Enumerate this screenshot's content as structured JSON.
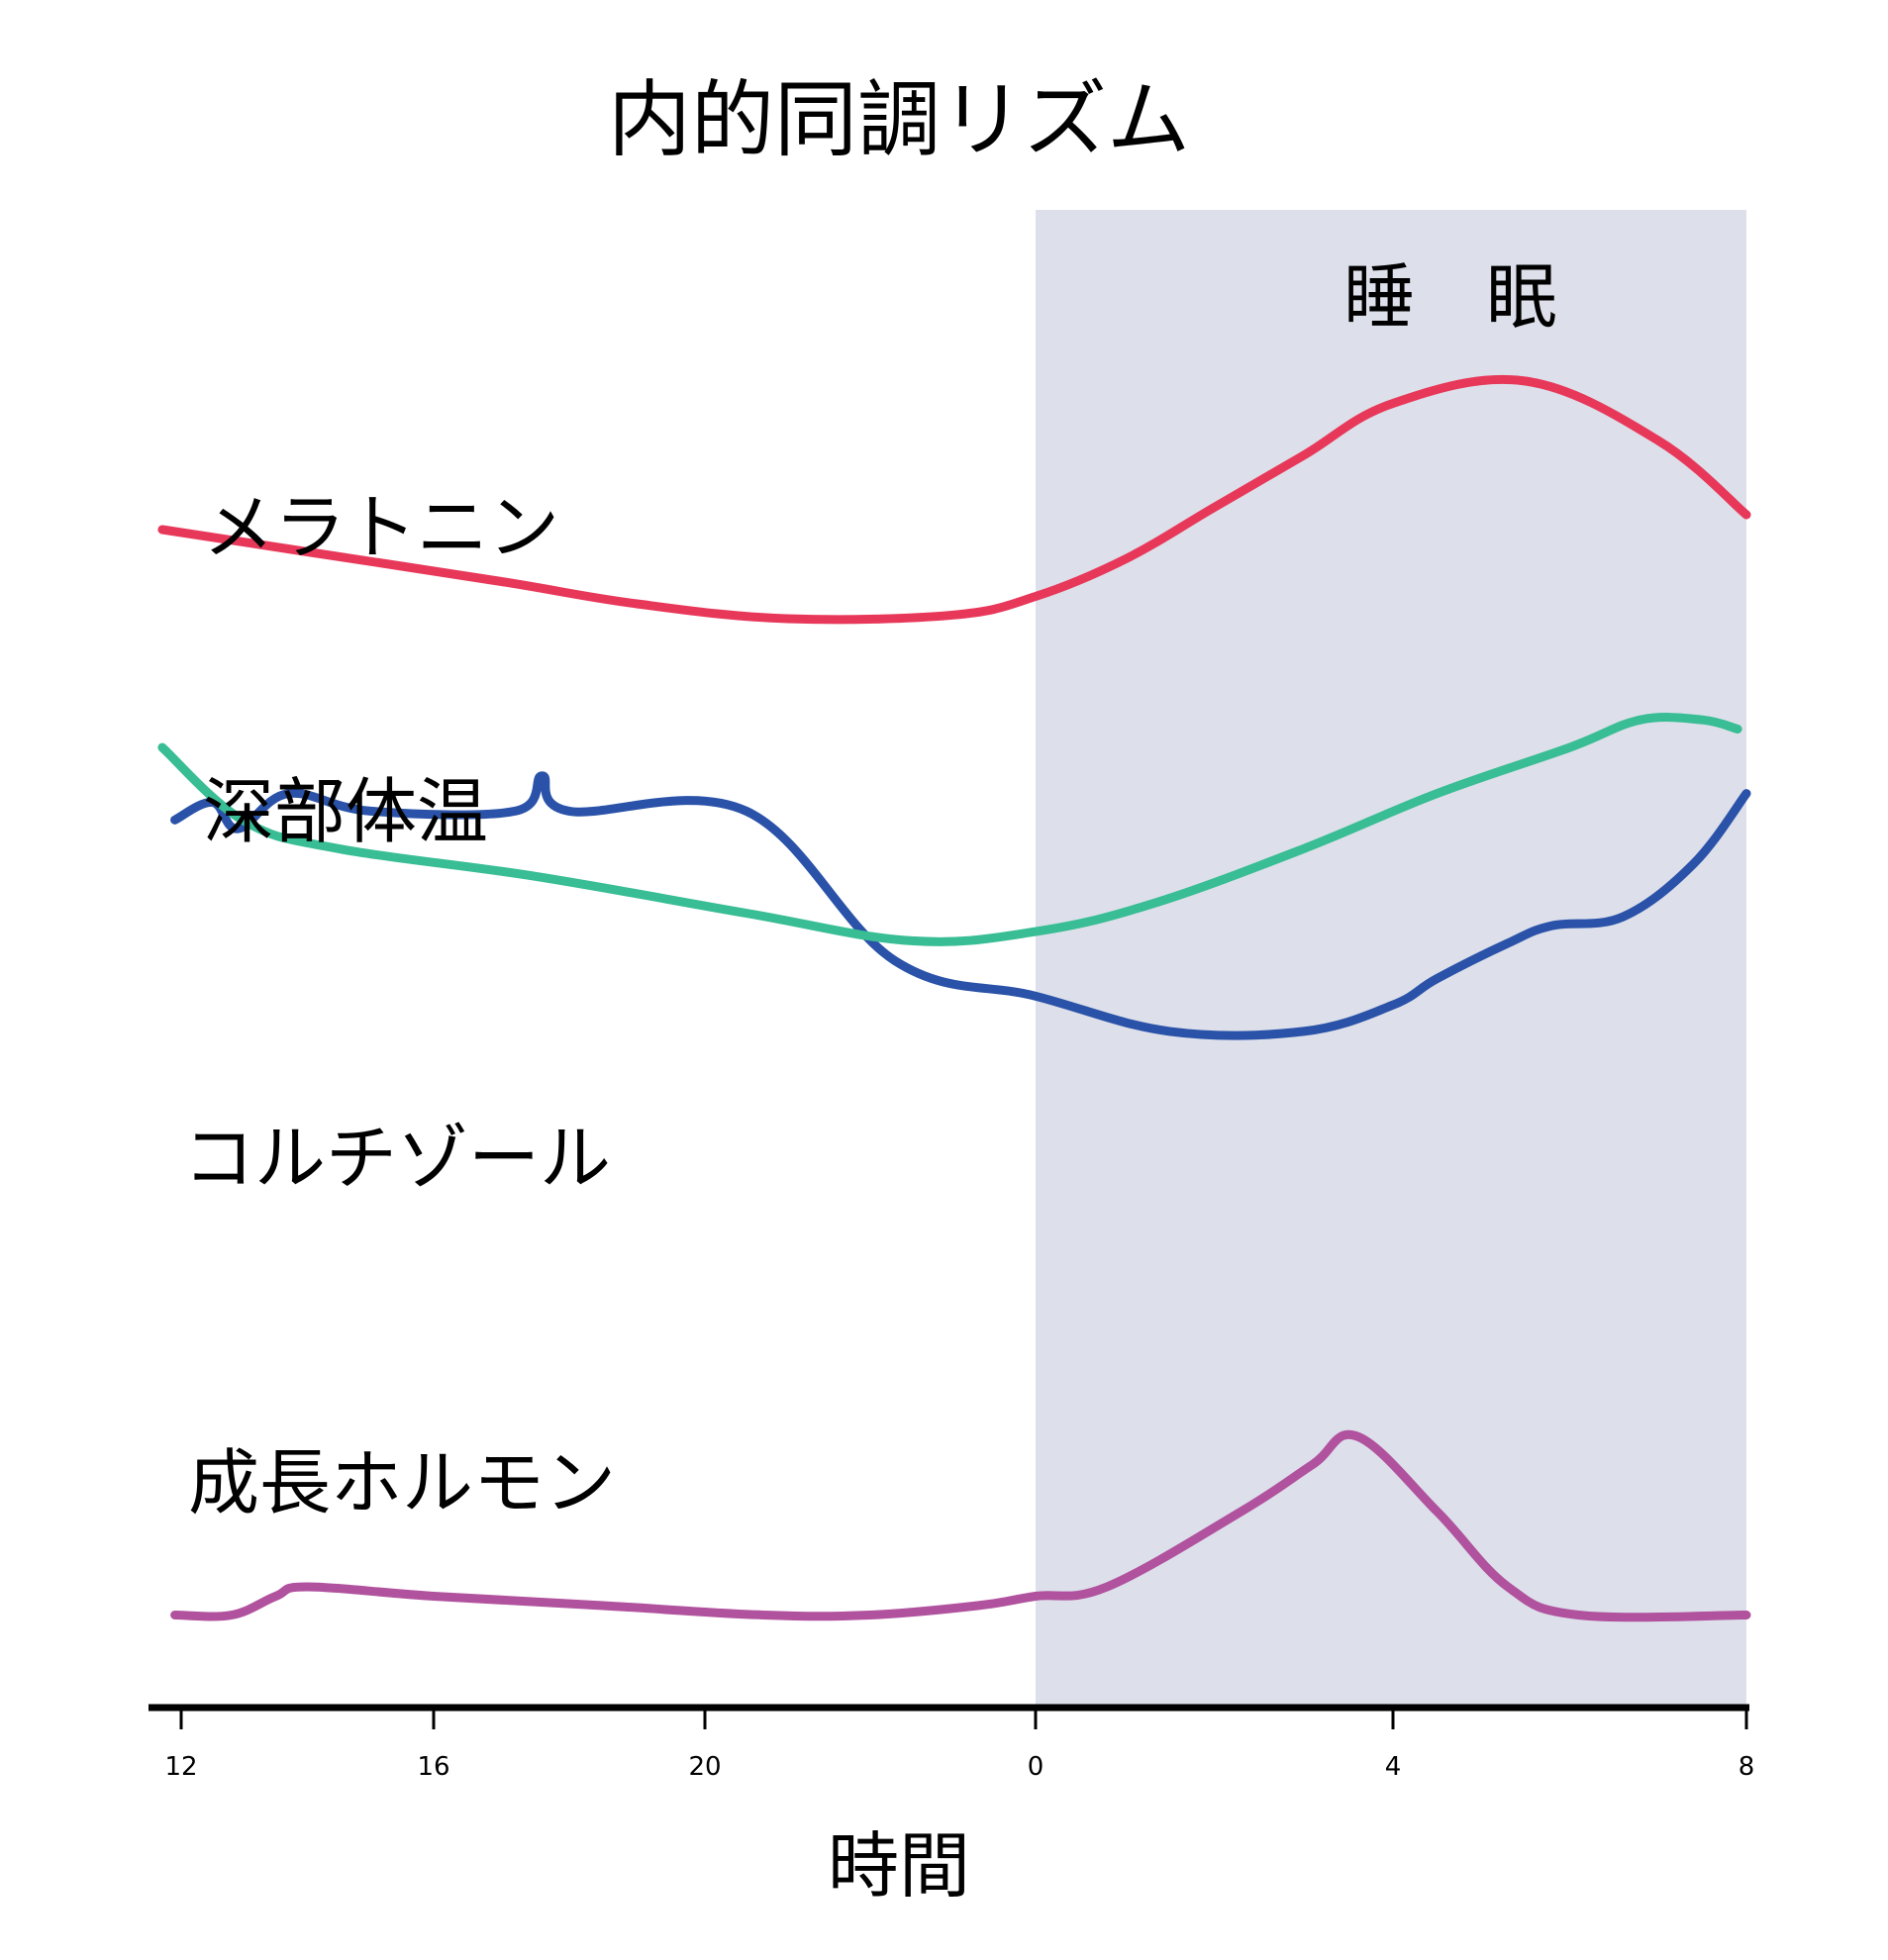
{
  "chart_data": {
    "type": "line",
    "title": "内的同調リズム",
    "xlabel": "時間",
    "ylabel": "",
    "x_ticks": [
      "12",
      "16",
      "20",
      "0",
      "4",
      "8"
    ],
    "x_ticks_hours": [
      12,
      16,
      20,
      24,
      28,
      32
    ],
    "x_range": [
      11.7,
      32
    ],
    "shaded_region": {
      "label": "睡　眠",
      "x_start_hours": 24,
      "x_end_hours": 32,
      "color": "#dde0ea"
    },
    "series": [
      {
        "name": "メラトニン",
        "color": "#e8385a",
        "points": [
          [
            11.7,
            0.62
          ],
          [
            14,
            0.59
          ],
          [
            17,
            0.55
          ],
          [
            19,
            0.52
          ],
          [
            21,
            0.5
          ],
          [
            23,
            0.505
          ],
          [
            24,
            0.53
          ],
          [
            25,
            0.58
          ],
          [
            26,
            0.65
          ],
          [
            27,
            0.72
          ],
          [
            28,
            0.79
          ],
          [
            29.5,
            0.82
          ],
          [
            31,
            0.74
          ],
          [
            32,
            0.64
          ]
        ]
      },
      {
        "name": "深部体温",
        "color": "#2a52a8",
        "points": [
          [
            11.9,
            0.53
          ],
          [
            12.5,
            0.55
          ],
          [
            12.9,
            0.52
          ],
          [
            13.7,
            0.56
          ],
          [
            15,
            0.54
          ],
          [
            17.2,
            0.54
          ],
          [
            17.6,
            0.58
          ],
          [
            18,
            0.54
          ],
          [
            20.5,
            0.54
          ],
          [
            22.3,
            0.37
          ],
          [
            24,
            0.33
          ],
          [
            25.5,
            0.29
          ],
          [
            27,
            0.29
          ],
          [
            28,
            0.32
          ],
          [
            28.5,
            0.35
          ],
          [
            29.3,
            0.39
          ],
          [
            29.8,
            0.41
          ],
          [
            30.6,
            0.42
          ],
          [
            31.4,
            0.48
          ],
          [
            32,
            0.56
          ]
        ]
      },
      {
        "name": "コルチゾール",
        "color": "#38bd94",
        "points": [
          [
            11.7,
            0.93
          ],
          [
            13,
            0.85
          ],
          [
            14.5,
            0.82
          ],
          [
            17.5,
            0.79
          ],
          [
            20.5,
            0.75
          ],
          [
            22.5,
            0.72
          ],
          [
            24,
            0.73
          ],
          [
            25.3,
            0.76
          ],
          [
            27,
            0.82
          ],
          [
            28.5,
            0.88
          ],
          [
            30,
            0.93
          ],
          [
            30.8,
            0.96
          ],
          [
            31.5,
            0.96
          ],
          [
            31.9,
            0.95
          ]
        ]
      },
      {
        "name": "成長ホルモン",
        "color": "#b0529e",
        "points": [
          [
            11.9,
            0.23
          ],
          [
            12.8,
            0.23
          ],
          [
            13.5,
            0.25
          ],
          [
            14,
            0.26
          ],
          [
            16,
            0.25
          ],
          [
            18.5,
            0.24
          ],
          [
            20.7,
            0.23
          ],
          [
            22,
            0.23
          ],
          [
            23.3,
            0.24
          ],
          [
            24,
            0.25
          ],
          [
            24.8,
            0.26
          ],
          [
            26.3,
            0.34
          ],
          [
            27.1,
            0.39
          ],
          [
            27.6,
            0.42
          ],
          [
            28.5,
            0.34
          ],
          [
            29.3,
            0.26
          ],
          [
            30.1,
            0.23
          ],
          [
            32,
            0.23
          ]
        ]
      }
    ],
    "series_value_note": "values are relative levels (0-1) normalized within each series' own band; no y-axis is shown"
  }
}
